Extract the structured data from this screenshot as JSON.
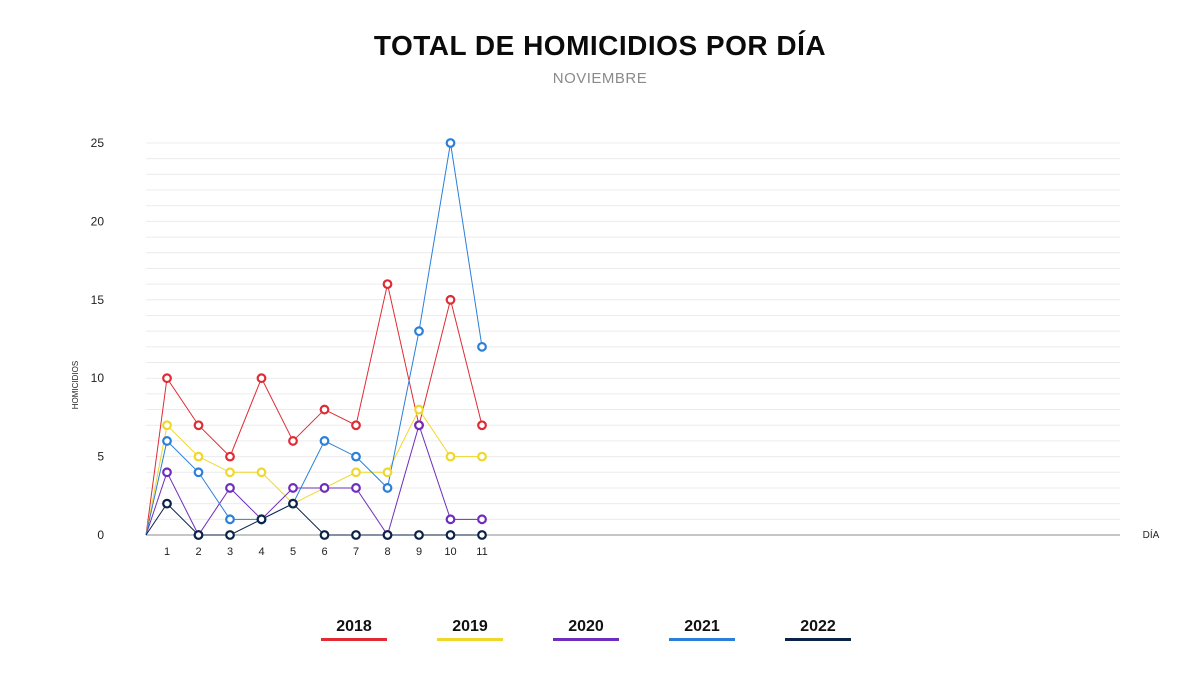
{
  "chart_data": {
    "type": "line",
    "title": "TOTAL DE HOMICIDIOS POR DÍA",
    "subtitle": "NOVIEMBRE",
    "xlabel": "DÍA",
    "ylabel": "HOMICIDIOS",
    "x": [
      1,
      2,
      3,
      4,
      5,
      6,
      7,
      8,
      9,
      10,
      11
    ],
    "ylim": [
      0,
      25
    ],
    "yticks": [
      0,
      5,
      10,
      15,
      20,
      25
    ],
    "grid": true,
    "legend_position": "bottom",
    "series": [
      {
        "name": "2018",
        "color": "#e02b35",
        "values": [
          10,
          7,
          5,
          10,
          6,
          8,
          7,
          16,
          7,
          15,
          7
        ]
      },
      {
        "name": "2019",
        "color": "#efd82b",
        "values": [
          7,
          5,
          4,
          4,
          2,
          3,
          4,
          4,
          8,
          5,
          5
        ]
      },
      {
        "name": "2020",
        "color": "#6f2dbd",
        "values": [
          4,
          0,
          3,
          1,
          3,
          3,
          3,
          0,
          7,
          1,
          1
        ]
      },
      {
        "name": "2021",
        "color": "#2b7fd9",
        "values": [
          6,
          4,
          1,
          1,
          2,
          6,
          5,
          3,
          13,
          25,
          12
        ]
      },
      {
        "name": "2022",
        "color": "#0b2347",
        "values": [
          2,
          0,
          0,
          1,
          2,
          0,
          0,
          0,
          0,
          0,
          0
        ]
      }
    ]
  }
}
